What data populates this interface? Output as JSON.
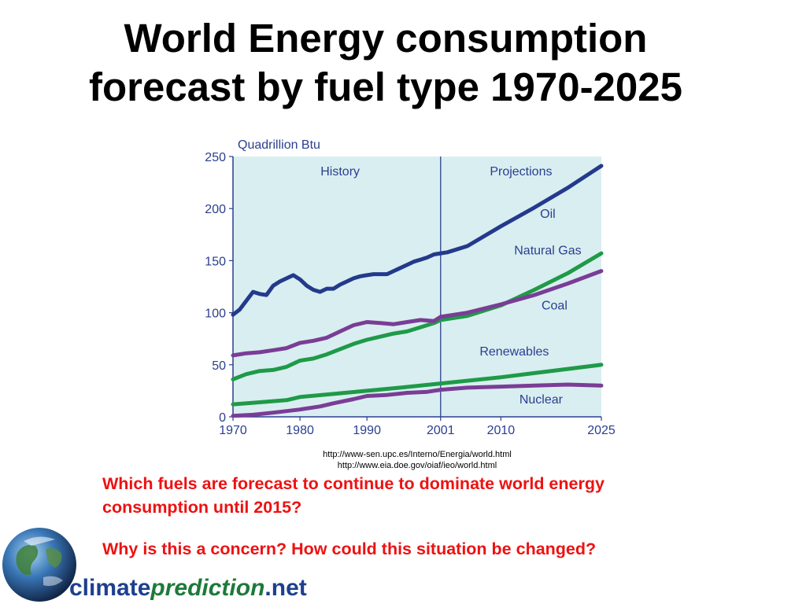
{
  "title": {
    "line1": "World Energy consumption",
    "line2": "forecast by fuel type 1970-2025"
  },
  "chart_data": {
    "type": "line",
    "ylabel": "Quadrillion Btu",
    "ylim": [
      0,
      250
    ],
    "xlim": [
      1970,
      2025
    ],
    "y_ticks": [
      0,
      50,
      100,
      150,
      200,
      250
    ],
    "x_ticks": [
      1970,
      1980,
      1990,
      2001,
      2010,
      2025
    ],
    "divider_year": 2001,
    "region_labels": {
      "history": "History",
      "projections": "Projections"
    },
    "background_color": "#d9eef0",
    "grid": false,
    "series": [
      {
        "name": "Oil",
        "color": "#233a8c",
        "x": [
          1970,
          1971,
          1973,
          1974,
          1975,
          1976,
          1977,
          1979,
          1980,
          1981,
          1982,
          1983,
          1984,
          1985,
          1986,
          1987,
          1988,
          1989,
          1990,
          1991,
          1992,
          1993,
          1994,
          1995,
          1996,
          1997,
          1998,
          1999,
          2000,
          2001,
          2002,
          2005,
          2010,
          2015,
          2020,
          2025
        ],
        "y": [
          98,
          103,
          120,
          118,
          117,
          126,
          130,
          136,
          132,
          126,
          122,
          120,
          123,
          123,
          127,
          130,
          133,
          135,
          136,
          137,
          137,
          137,
          140,
          143,
          146,
          149,
          151,
          153,
          156,
          157,
          158,
          164,
          183,
          201,
          220,
          241
        ]
      },
      {
        "name": "Natural Gas",
        "color": "#1f9a48",
        "x": [
          1970,
          1972,
          1974,
          1976,
          1978,
          1980,
          1982,
          1984,
          1986,
          1988,
          1990,
          1992,
          1994,
          1996,
          1998,
          2000,
          2001,
          2005,
          2010,
          2015,
          2020,
          2025
        ],
        "y": [
          36,
          41,
          44,
          45,
          48,
          54,
          56,
          60,
          65,
          70,
          74,
          77,
          80,
          82,
          86,
          90,
          93,
          97,
          107,
          122,
          138,
          157
        ]
      },
      {
        "name": "Coal",
        "color": "#7a3d96",
        "x": [
          1970,
          1972,
          1974,
          1976,
          1978,
          1980,
          1982,
          1984,
          1986,
          1988,
          1990,
          1992,
          1994,
          1996,
          1998,
          2000,
          2001,
          2005,
          2010,
          2015,
          2020,
          2025
        ],
        "y": [
          59,
          61,
          62,
          64,
          66,
          71,
          73,
          76,
          82,
          88,
          91,
          90,
          89,
          91,
          93,
          92,
          96,
          100,
          108,
          117,
          128,
          140
        ]
      },
      {
        "name": "Renewables",
        "color": "#1f9a48",
        "x": [
          1970,
          1974,
          1978,
          1980,
          1985,
          1990,
          1995,
          2001,
          2010,
          2015,
          2020,
          2025
        ],
        "y": [
          12,
          14,
          16,
          19,
          22,
          25,
          28,
          32,
          38,
          42,
          46,
          50
        ]
      },
      {
        "name": "Nuclear",
        "color": "#7a3d96",
        "x": [
          1970,
          1973,
          1976,
          1980,
          1983,
          1985,
          1988,
          1990,
          1993,
          1996,
          1999,
          2001,
          2005,
          2010,
          2015,
          2020,
          2025
        ],
        "y": [
          1,
          2,
          4,
          7,
          10,
          13,
          17,
          20,
          21,
          23,
          24,
          26,
          28,
          29,
          30,
          31,
          30
        ]
      }
    ],
    "series_label_positions": {
      "Oil": [
        2017,
        191
      ],
      "Natural Gas": [
        2017,
        156
      ],
      "Coal": [
        2018,
        103
      ],
      "Renewables": [
        2012,
        59
      ],
      "Nuclear": [
        2016,
        13
      ]
    }
  },
  "sources": {
    "line1": "http://www-sen.upc.es/Interno/Energia/world.html",
    "line2": "http://www.eia.doe.gov/oiaf/ieo/world.html"
  },
  "questions": {
    "q1": "Which fuels are forecast to continue to dominate world energy consumption until 2015?",
    "q2": "Why is this a concern? How could this situation be changed?"
  },
  "logo": {
    "part1": "climate",
    "part2": "prediction",
    "part3": ".net",
    "icon": "globe-icon"
  }
}
